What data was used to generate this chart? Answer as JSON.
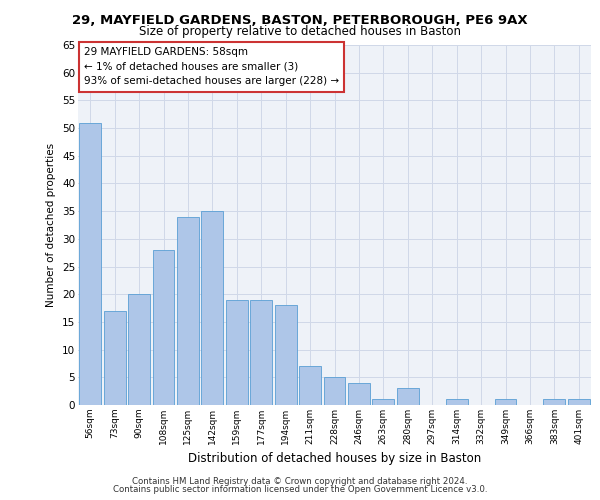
{
  "title_line1": "29, MAYFIELD GARDENS, BASTON, PETERBOROUGH, PE6 9AX",
  "title_line2": "Size of property relative to detached houses in Baston",
  "xlabel": "Distribution of detached houses by size in Baston",
  "ylabel": "Number of detached properties",
  "categories": [
    "56sqm",
    "73sqm",
    "90sqm",
    "108sqm",
    "125sqm",
    "142sqm",
    "159sqm",
    "177sqm",
    "194sqm",
    "211sqm",
    "228sqm",
    "246sqm",
    "263sqm",
    "280sqm",
    "297sqm",
    "314sqm",
    "332sqm",
    "349sqm",
    "366sqm",
    "383sqm",
    "401sqm"
  ],
  "values": [
    51,
    17,
    20,
    28,
    34,
    35,
    19,
    19,
    18,
    7,
    5,
    4,
    1,
    3,
    0,
    1,
    0,
    1,
    0,
    1,
    1
  ],
  "bar_color": "#aec6e8",
  "bar_edge_color": "#5a9fd4",
  "annotation_title": "29 MAYFIELD GARDENS: 58sqm",
  "annotation_line1": "← 1% of detached houses are smaller (3)",
  "annotation_line2": "93% of semi-detached houses are larger (228) →",
  "ylim": [
    0,
    65
  ],
  "yticks": [
    0,
    5,
    10,
    15,
    20,
    25,
    30,
    35,
    40,
    45,
    50,
    55,
    60,
    65
  ],
  "grid_color": "#d0d8e8",
  "background_color": "#eef2f8",
  "footer_line1": "Contains HM Land Registry data © Crown copyright and database right 2024.",
  "footer_line2": "Contains public sector information licensed under the Open Government Licence v3.0."
}
